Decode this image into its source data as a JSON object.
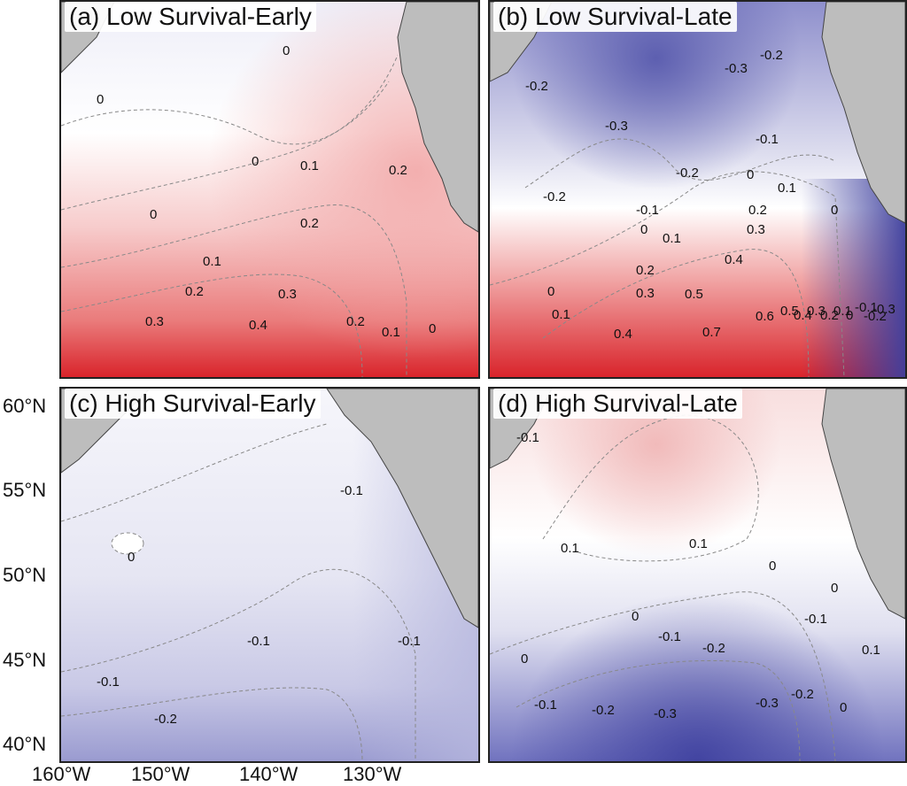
{
  "panels": [
    {
      "id": "a",
      "title": "(a) Low Survival-Early",
      "labels": [
        "0",
        "0",
        "0",
        "0",
        "0.1",
        "0.2",
        "0.2",
        "0.1",
        "0.2",
        "0.3",
        "0.3",
        "0.4",
        "0.2",
        "0.1",
        "0"
      ]
    },
    {
      "id": "b",
      "title": "(b) Low Survival-Late",
      "labels": [
        "-0.2",
        "-0.3",
        "-0.3",
        "-0.2",
        "-0.1",
        "-0.2",
        "-0.2",
        "0",
        "0.1",
        "0",
        "-0.1",
        "0",
        "0.1",
        "0.2",
        "0.3",
        "0",
        "0.4",
        "0.2",
        "0.3",
        "0.1",
        "0.5",
        "0.4",
        "0.7",
        "0.6",
        "0.5",
        "0.4",
        "0.3",
        "0.2",
        "0.1",
        "0",
        "-0.1",
        "-0.2",
        "-0.3"
      ]
    },
    {
      "id": "c",
      "title": "(c) High Survival-Early",
      "labels": [
        "-0.1",
        "0",
        "-0.1",
        "-0.1",
        "-0.1",
        "-0.2"
      ]
    },
    {
      "id": "d",
      "title": "(d) High Survival-Late",
      "labels": [
        "-0.1",
        "0.1",
        "0.1",
        "0",
        "0",
        "0",
        "-0.1",
        "-0.1",
        "-0.2",
        "0",
        "0.1",
        "-0.1",
        "-0.2",
        "-0.3",
        "-0.3",
        "-0.2",
        "0"
      ]
    }
  ],
  "axes": {
    "lat_labels": [
      "60°N",
      "55°N",
      "50°N",
      "45°N",
      "40°N"
    ],
    "lon_labels": [
      "160°W",
      "150°W",
      "140°W",
      "130°W"
    ]
  },
  "colors": {
    "land": "#bdbdbd",
    "positive": "#d7232a",
    "negative": "#3d3f9e",
    "neutral": "#ffffff"
  }
}
